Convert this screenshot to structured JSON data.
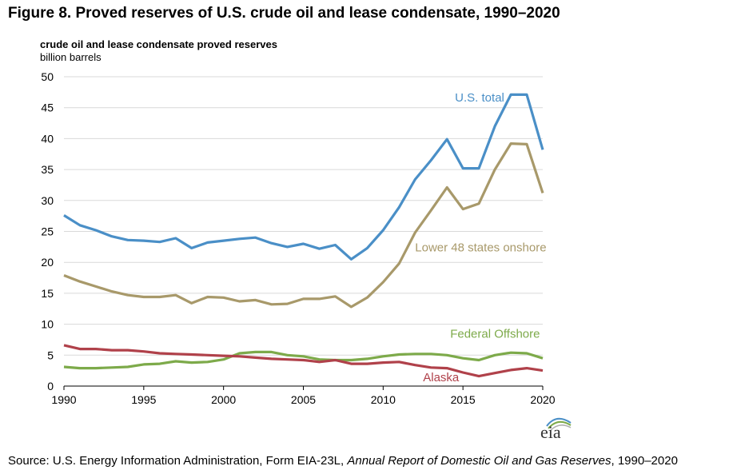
{
  "figure_title": "Figure 8. Proved reserves of U.S. crude oil and lease condensate, 1990–2020",
  "logo_text": "eia",
  "source": {
    "prefix": "Source: U.S. Energy Information Administration, Form EIA-23L, ",
    "italic": "Annual Report of Domestic Oil and Gas Reserves",
    "suffix": ", 1990–2020"
  },
  "chart_data": {
    "type": "line",
    "title": "crude oil and lease condensate proved reserves",
    "ylabel": "billion barrels",
    "xlabel": "",
    "xlim": [
      1990,
      2020
    ],
    "ylim": [
      0,
      50
    ],
    "xticks": [
      1990,
      1995,
      2000,
      2005,
      2010,
      2015,
      2020
    ],
    "yticks": [
      0,
      5,
      10,
      15,
      20,
      25,
      30,
      35,
      40,
      45,
      50
    ],
    "grid": "horizontal",
    "x": [
      1990,
      1991,
      1992,
      1993,
      1994,
      1995,
      1996,
      1997,
      1998,
      1999,
      2000,
      2001,
      2002,
      2003,
      2004,
      2005,
      2006,
      2007,
      2008,
      2009,
      2010,
      2011,
      2012,
      2013,
      2014,
      2015,
      2016,
      2017,
      2018,
      2019,
      2020
    ],
    "series": [
      {
        "name": "U.S. total",
        "color": "#4a8fc7",
        "values": [
          27.6,
          26.0,
          25.2,
          24.2,
          23.6,
          23.5,
          23.3,
          23.9,
          22.3,
          23.2,
          23.5,
          23.8,
          24.0,
          23.1,
          22.5,
          23.0,
          22.2,
          22.8,
          20.5,
          22.3,
          25.2,
          28.9,
          33.4,
          36.5,
          39.9,
          35.2,
          35.2,
          42.0,
          47.1,
          47.1,
          38.2
        ],
        "label_pos": {
          "x": 2014.5,
          "y": 46
        }
      },
      {
        "name": "Lower 48 states onshore",
        "color": "#a8996a",
        "values": [
          17.9,
          16.9,
          16.1,
          15.3,
          14.7,
          14.4,
          14.4,
          14.7,
          13.4,
          14.4,
          14.3,
          13.7,
          13.9,
          13.2,
          13.3,
          14.1,
          14.1,
          14.5,
          12.8,
          14.3,
          16.8,
          19.8,
          24.8,
          28.4,
          32.1,
          28.6,
          29.5,
          35.0,
          39.2,
          39.1,
          31.2
        ],
        "label_pos": {
          "x": 2012,
          "y": 21.8
        }
      },
      {
        "name": "Federal Offshore",
        "color": "#7daa4a",
        "values": [
          3.1,
          2.9,
          2.9,
          3.0,
          3.1,
          3.5,
          3.6,
          4.0,
          3.8,
          3.9,
          4.3,
          5.3,
          5.5,
          5.5,
          5.0,
          4.8,
          4.3,
          4.2,
          4.2,
          4.4,
          4.8,
          5.1,
          5.2,
          5.2,
          5.0,
          4.5,
          4.2,
          5.0,
          5.4,
          5.3,
          4.5
        ],
        "label_pos": {
          "x": 2014.2,
          "y": 7.8
        }
      },
      {
        "name": "Alaska",
        "color": "#b0414a",
        "values": [
          6.6,
          6.0,
          6.0,
          5.8,
          5.8,
          5.6,
          5.3,
          5.2,
          5.1,
          5.0,
          4.9,
          4.8,
          4.6,
          4.4,
          4.3,
          4.2,
          3.9,
          4.2,
          3.6,
          3.6,
          3.8,
          3.9,
          3.4,
          3.0,
          2.9,
          2.2,
          1.6,
          2.1,
          2.6,
          2.9,
          2.5
        ],
        "label_pos": {
          "x": 2012.5,
          "y": 0.8
        }
      }
    ]
  }
}
